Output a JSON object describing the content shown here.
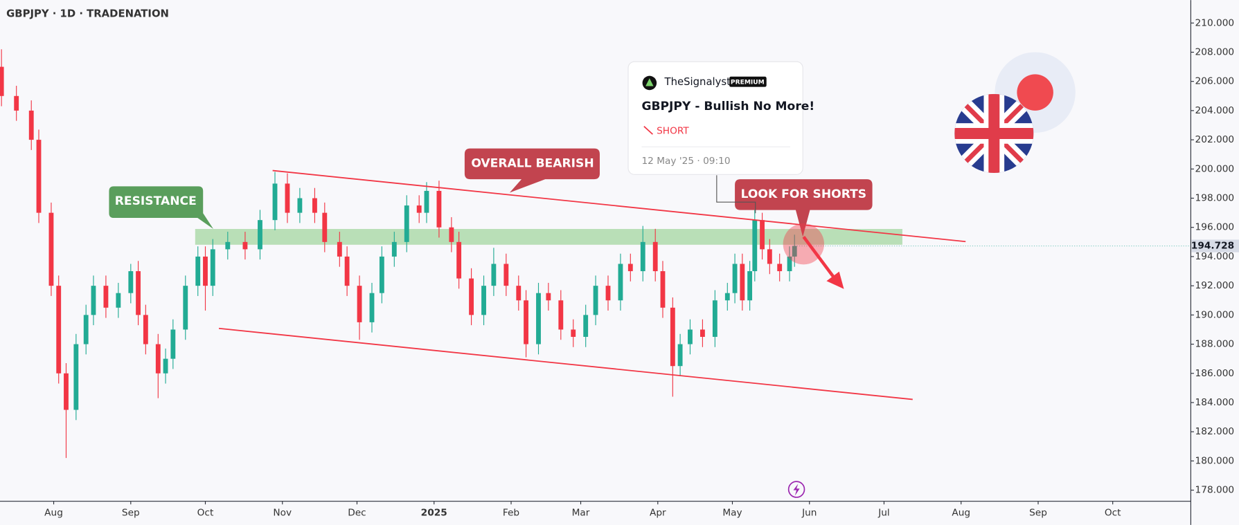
{
  "chart_data": {
    "type": "candlestick",
    "title": "GBPJPY · 1D · TRADENATION",
    "x": [
      10,
      16,
      22,
      25,
      30,
      33,
      36,
      40,
      44,
      47,
      52,
      57,
      62,
      65,
      68,
      73,
      76,
      79,
      84,
      89,
      92,
      95,
      101,
      108,
      114,
      120,
      125,
      130,
      136,
      140,
      146,
      149,
      154,
      159,
      163,
      168,
      173,
      178,
      181,
      186,
      191,
      194,
      199,
      204,
      208,
      213,
      218,
      221,
      226,
      230,
      235,
      240,
      245,
      249,
      254,
      259,
      263,
      268,
      273,
      276,
      280,
      283,
      287,
      292,
      297,
      302,
      305,
      308,
      311,
      313,
      316,
      319,
      323,
      327,
      329
    ],
    "series": [
      {
        "name": "GBPJPY",
        "up_color": "#22ab94",
        "down_color": "#f23645",
        "open": [
          207,
          205,
          204,
          202,
          197,
          192,
          186,
          183.5,
          188,
          190,
          192,
          190.5,
          191.5,
          193,
          190,
          188,
          186,
          187,
          189,
          192,
          194,
          192,
          194.5,
          195,
          194.5,
          196.5,
          199,
          197,
          198,
          197,
          195,
          194,
          192,
          189.5,
          191.5,
          194,
          195,
          197.5,
          197,
          198.5,
          196,
          195,
          192.5,
          190,
          192,
          193.5,
          192,
          191,
          188,
          191.5,
          191,
          189,
          188.5,
          190,
          192,
          191,
          193.5,
          193,
          195,
          193,
          190.5,
          186.5,
          188,
          189,
          188.5,
          191,
          191.5,
          193.5,
          191,
          193,
          196.5,
          194.5,
          193.5,
          193,
          194
        ],
        "high": [
          208.2,
          205.7,
          204.7,
          202.7,
          197.7,
          192.7,
          186.7,
          188.7,
          190.7,
          192.7,
          192.7,
          192.2,
          193.5,
          193.7,
          190.7,
          188.7,
          187.7,
          189.7,
          192.7,
          194.7,
          194.7,
          195.2,
          195.7,
          195.7,
          197.2,
          199.8,
          199.7,
          198.7,
          198.7,
          197.7,
          195.7,
          194.7,
          192.7,
          192.2,
          194.7,
          195.7,
          198.2,
          198.2,
          199.1,
          199.2,
          196.7,
          195.7,
          193.2,
          192.7,
          194.6,
          194.2,
          192.7,
          191.7,
          192.2,
          192.2,
          191.7,
          189.7,
          190.7,
          192.7,
          192.7,
          194.2,
          194.2,
          196.1,
          195.9,
          193.7,
          191.2,
          188.7,
          189.7,
          189.7,
          191.7,
          192.2,
          194.2,
          194.2,
          193.7,
          197.7,
          197.0,
          195.2,
          194.2,
          194.7,
          195.5
        ],
        "low": [
          204.3,
          203.3,
          201.3,
          196.3,
          191.3,
          185.3,
          180.2,
          182.8,
          187.3,
          189.3,
          189.8,
          189.8,
          190.8,
          189.3,
          187.3,
          184.3,
          185.3,
          186.3,
          188.3,
          191.3,
          190.3,
          191.3,
          193.8,
          193.8,
          193.8,
          195.8,
          196.3,
          196.3,
          196.3,
          194.3,
          193.3,
          191.3,
          188.3,
          188.8,
          190.8,
          193.3,
          194.3,
          196.3,
          196.3,
          195.3,
          194.3,
          191.8,
          189.3,
          189.3,
          191.3,
          191.3,
          190.3,
          187.1,
          187.3,
          190.3,
          188.3,
          187.8,
          187.8,
          189.3,
          190.3,
          190.3,
          192.3,
          192.3,
          192.3,
          189.8,
          184.4,
          185.8,
          187.3,
          187.8,
          187.8,
          190.3,
          190.8,
          190.3,
          190.3,
          192.3,
          193.8,
          192.8,
          192.3,
          192.3,
          193.3
        ],
        "close": [
          205,
          204,
          202,
          197,
          192,
          186,
          183.5,
          188,
          190,
          192,
          190.5,
          191.5,
          193,
          190,
          188,
          186,
          187,
          189,
          192,
          194,
          192,
          194.5,
          195,
          194.5,
          196.5,
          199,
          197,
          198,
          197,
          195,
          194,
          192,
          189.5,
          191.5,
          194,
          195,
          197.5,
          197,
          198.5,
          196,
          195,
          192.5,
          190,
          192,
          193.5,
          192,
          191,
          188,
          191.5,
          191,
          189,
          188.5,
          190,
          192,
          191,
          193.5,
          193,
          195,
          193,
          190.5,
          186.5,
          188,
          189,
          188.5,
          191,
          191.5,
          193.5,
          191,
          193,
          196.5,
          194.5,
          193.5,
          193,
          194,
          194.728
        ]
      }
    ],
    "xlim": [
      9.4,
      488.4
    ],
    "xticks": [
      {
        "value": 31,
        "label": "Aug"
      },
      {
        "value": 62,
        "label": "Sep"
      },
      {
        "value": 92,
        "label": "Oct"
      },
      {
        "value": 123,
        "label": "Nov"
      },
      {
        "value": 153,
        "label": "Dec"
      },
      {
        "value": 184,
        "label": "2025"
      },
      {
        "value": 215,
        "label": "Feb"
      },
      {
        "value": 243,
        "label": "Mar"
      },
      {
        "value": 274,
        "label": "Apr"
      },
      {
        "value": 304,
        "label": "May"
      },
      {
        "value": 335,
        "label": "Jun"
      },
      {
        "value": 365,
        "label": "Jul"
      },
      {
        "value": 396,
        "label": "Aug"
      },
      {
        "value": 427,
        "label": "Sep"
      },
      {
        "value": 457,
        "label": "Oct"
      }
    ],
    "ylim": [
      177.24,
      211.57
    ],
    "yticks": [
      {
        "value": 178,
        "label": "178.000"
      },
      {
        "value": 180,
        "label": "180.000"
      },
      {
        "value": 182,
        "label": "182.000"
      },
      {
        "value": 184,
        "label": "184.000"
      },
      {
        "value": 186,
        "label": "186.000"
      },
      {
        "value": 188,
        "label": "188.000"
      },
      {
        "value": 190,
        "label": "190.000"
      },
      {
        "value": 192,
        "label": "192.000"
      },
      {
        "value": 194,
        "label": "194.000"
      },
      {
        "value": 196,
        "label": "196.000"
      },
      {
        "value": 198,
        "label": "198.000"
      },
      {
        "value": 200,
        "label": "200.000"
      },
      {
        "value": 202,
        "label": "202.000"
      },
      {
        "value": 204,
        "label": "204.000"
      },
      {
        "value": 206,
        "label": "206.000"
      },
      {
        "value": 208,
        "label": "208.000"
      },
      {
        "value": 210,
        "label": "210.000"
      }
    ],
    "grid": false,
    "annotations": {
      "resistance": "RESISTANCE",
      "overall": "OVERALL BEARISH",
      "shorts": "LOOK FOR SHORTS"
    },
    "idea": {
      "author": "TheSignalyst",
      "badge": "PREMIUM",
      "title": "GBPJPY - Bullish No More!",
      "direction": "SHORT",
      "date": "12 May '25 · 09:10"
    }
  }
}
